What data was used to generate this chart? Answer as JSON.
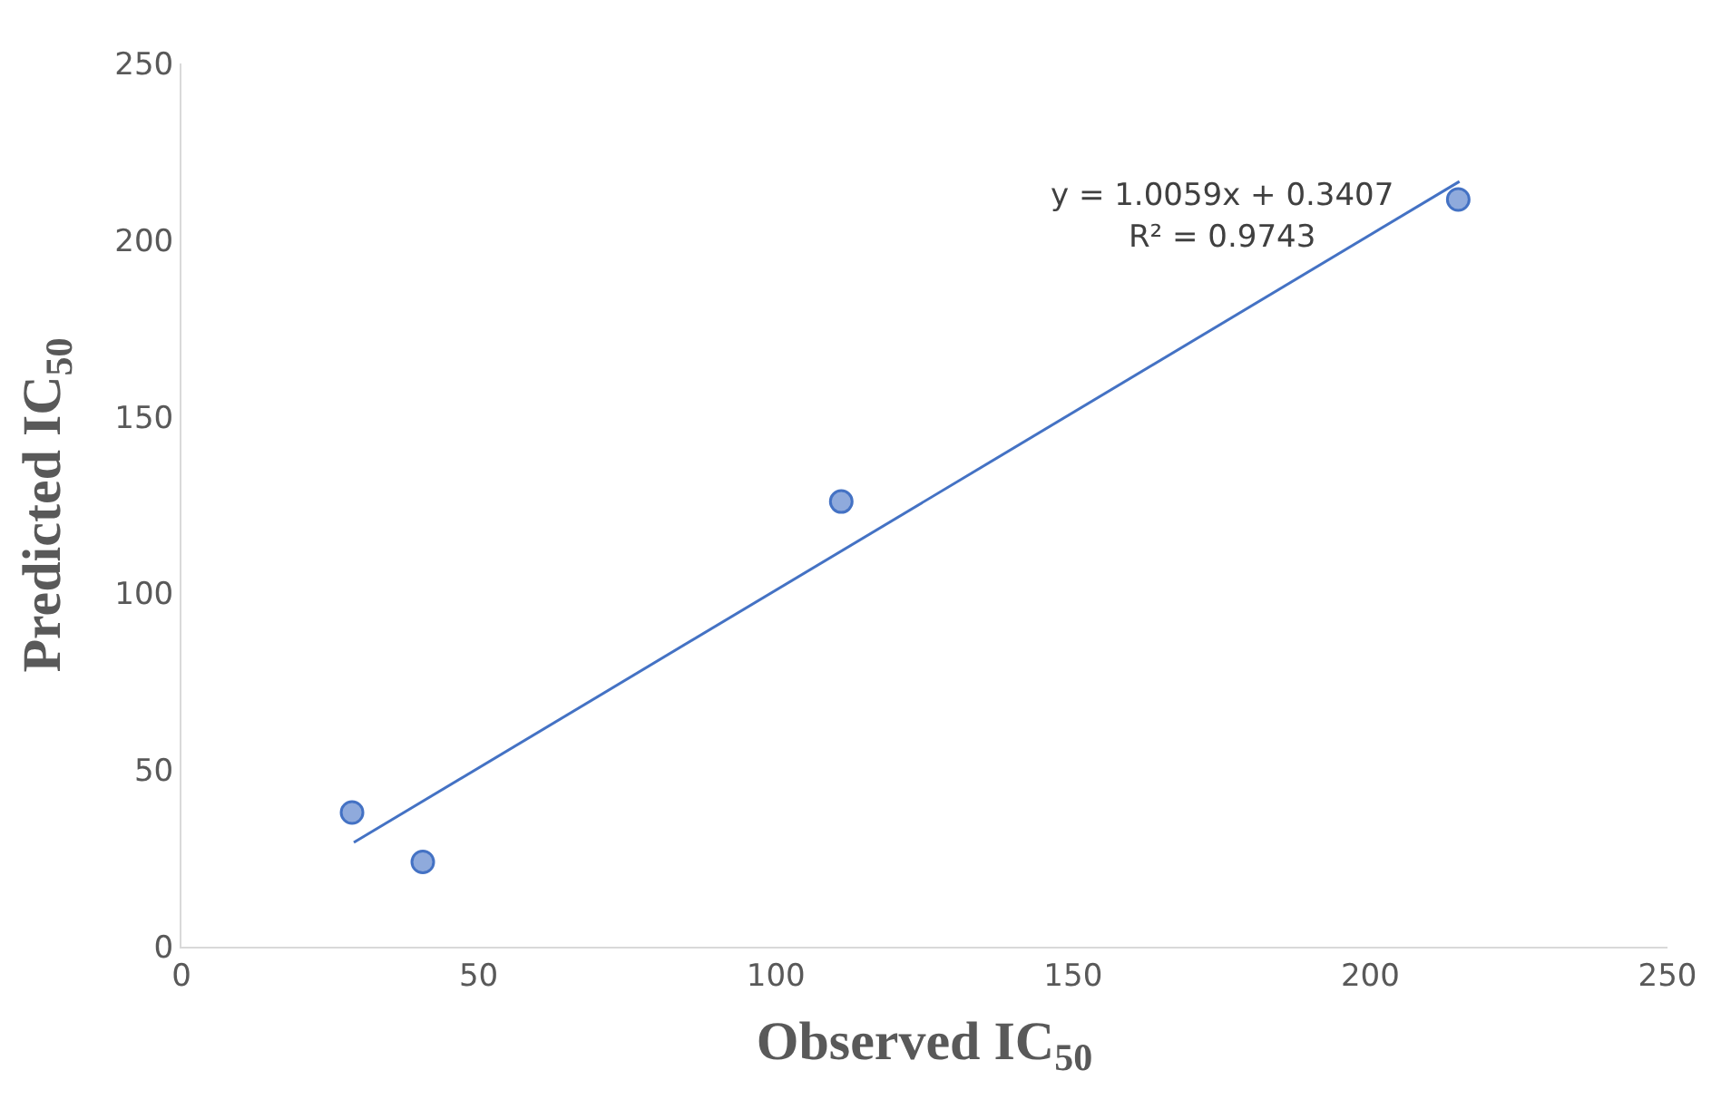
{
  "chart_data": {
    "type": "scatter",
    "xlabel": "Observed IC$_{50}$",
    "ylabel": "Predicted IC$_{50}$",
    "xlim": [
      0,
      250
    ],
    "xticks": [
      0,
      50,
      100,
      150,
      200,
      250
    ],
    "ylim": [
      0,
      250
    ],
    "yticks": [
      0,
      50,
      100,
      150,
      200,
      250
    ],
    "marker": "circle",
    "series": [
      {
        "color": "#8faadc",
        "x": [
          28.7,
          40.6,
          111,
          214.8
        ],
        "values": [
          38,
          24,
          126,
          211.5
        ]
      },
      {
        "type": "line",
        "color": "#4472c4",
        "marker": "none",
        "line_style": "solid",
        "x": [
          29,
          215
        ],
        "values": [
          29.5,
          216.6
        ]
      }
    ],
    "annotations": [
      "y = 1.0059x + 0.3407",
      "R² = 0.9743"
    ]
  }
}
